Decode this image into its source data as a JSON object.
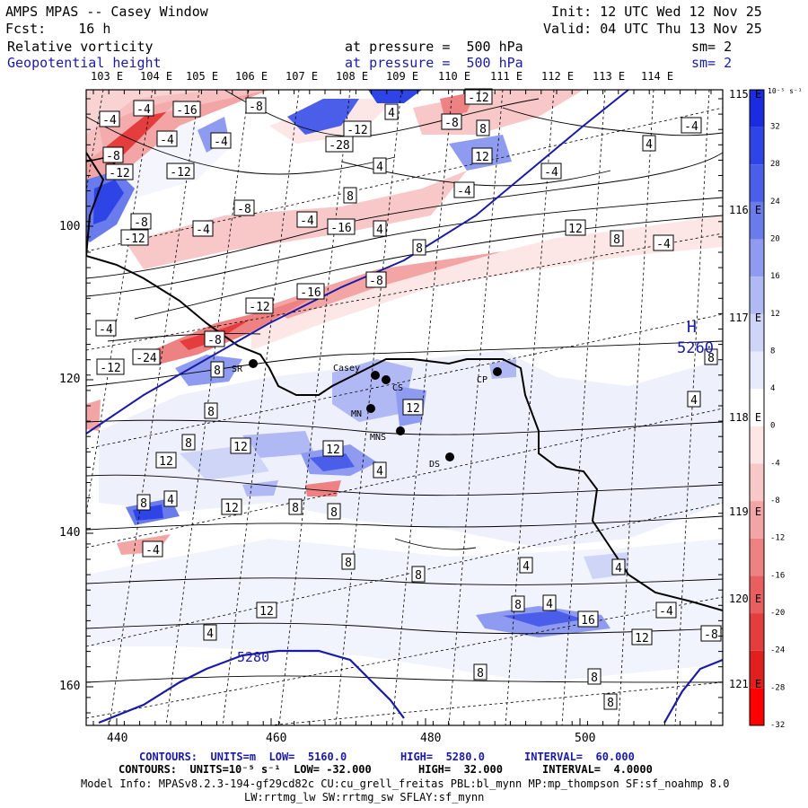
{
  "header": {
    "title": "AMPS MPAS -- Casey Window",
    "init": "Init: 12 UTC Wed 12 Nov 25",
    "fcst": "Fcst:    16 h",
    "valid": "Valid: 04 UTC Thu 13 Nov 25",
    "field1": "Relative vorticity",
    "field1_level": "at pressure =  500 hPa",
    "field1_sm": "sm= 2",
    "field2": "Geopotential height",
    "field2_level": "at pressure =  500 hPa",
    "field2_sm": "sm= 2"
  },
  "top_longitudes": [
    "103 E",
    "104 E",
    "105 E",
    "106 E",
    "107 E",
    "108 E",
    "109 E",
    "110 E",
    "111 E",
    "112 E",
    "113 E",
    "114 E"
  ],
  "right_lats": [
    "115 E",
    "116 E",
    "117 E",
    "118 E",
    "119 E",
    "120 E",
    "121 E"
  ],
  "y_ticks": [
    "100",
    "120",
    "140",
    "160"
  ],
  "x_ticks": [
    "440",
    "460",
    "480",
    "500"
  ],
  "colorbar": {
    "unit": "10⁻⁵ s⁻¹",
    "labels": [
      "32",
      "28",
      "24",
      "20",
      "16",
      "12",
      "8",
      "4",
      "0",
      "-4",
      "-8",
      "-12",
      "-16",
      "-20",
      "-24",
      "-28",
      "-32"
    ],
    "colors": [
      "#1a2be0",
      "#2f44e6",
      "#4b5ee9",
      "#6a7bec",
      "#8e9bf0",
      "#b0b9f3",
      "#cfd5f7",
      "#e8ebfb",
      "#ffffff",
      "#fde6e6",
      "#f8c7c7",
      "#f3a5a5",
      "#ee8282",
      "#e95e5e",
      "#e43d3d",
      "#e01f1f",
      "#ff0000"
    ]
  },
  "stations": [
    "SR",
    "Casey",
    "CS",
    "MN",
    "MNS",
    "CP",
    "DS"
  ],
  "annotations": {
    "high_symbol": "H",
    "high_value": "5260",
    "height_contour_label": "5280"
  },
  "footer": {
    "line1_a": "CONTOURS:  UNITS=m  LOW=  5160.0",
    "line1_b": "HIGH=  5280.0",
    "line1_c": "INTERVAL=  60.000",
    "line2_a": "CONTOURS:  UNITS=10⁻⁵ s⁻¹  LOW= -32.000",
    "line2_b": "HIGH=  32.000",
    "line2_c": "INTERVAL=  4.0000",
    "model_info": "Model Info: MPASv8.2.3-194-gf29cd82c CU:cu_grell_freitas PBL:bl_mynn MP:mp_thompson SF:sf_noahmp 8.0",
    "model_info2": "LW:rrtmg_lw SW:rrtmg_sw SFLAY:sf_mynn"
  },
  "contour_labels": [
    "-4",
    "-4",
    "-16",
    "-4",
    "-12",
    "-8",
    "-4",
    "4",
    "-12",
    "-8",
    "4",
    "-28",
    "-8",
    "-12",
    "8",
    "-12",
    "-8",
    "-12",
    "-8",
    "-4",
    "-4",
    "-16",
    "-8",
    "-12",
    "-16",
    "-8",
    "-24",
    "-12",
    "-4",
    "-4",
    "-4",
    "12",
    "8",
    "4",
    "8",
    "8",
    "12",
    "12",
    "12",
    "4",
    "8",
    "8",
    "12",
    "8",
    "4",
    "-4",
    "12",
    "8",
    "8",
    "8",
    "12",
    "4",
    "8",
    "16",
    "12",
    "8",
    "8",
    "4",
    "8",
    "8",
    "4",
    "4",
    "8",
    "4",
    "-4",
    "-8",
    "4",
    "-4",
    "-4",
    "8",
    "12"
  ]
}
